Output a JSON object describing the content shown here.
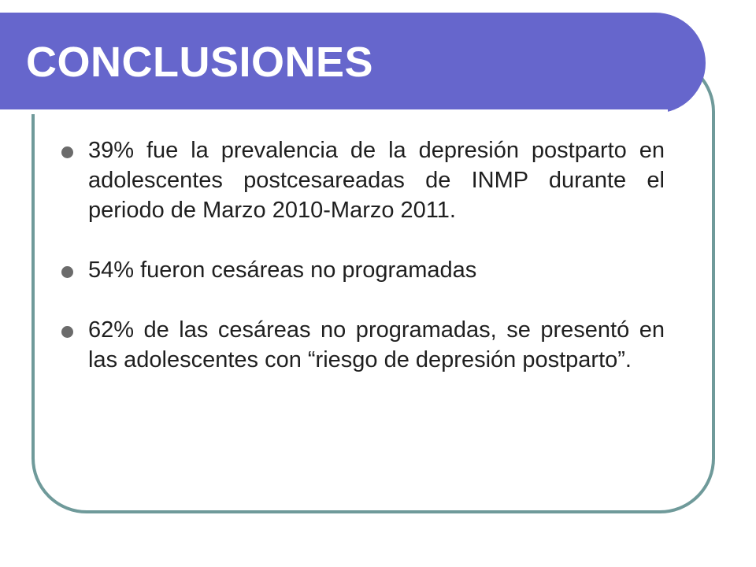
{
  "slide": {
    "title": "CONCLUSIONES",
    "bullets": [
      "39% fue la prevalencia de la depresión postparto en adolescentes postcesareadas de INMP durante el periodo de Marzo 2010-Marzo 2011.",
      "54% fueron cesáreas no programadas",
      "62%  de las cesáreas no programadas, se presentó en las adolescentes con “riesgo de depresión postparto”."
    ]
  },
  "colors": {
    "title_bar": "#6666cc",
    "frame_border": "#6f9a9a",
    "bullet_dot": "#6b6b6b",
    "text": "#1f1f1f"
  }
}
